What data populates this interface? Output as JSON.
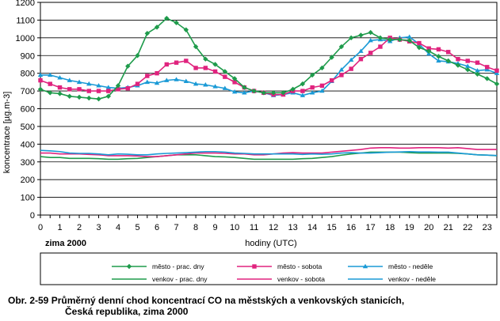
{
  "chart_data": {
    "type": "line",
    "ylabel": "koncentrace [µg.m-3]",
    "xlabel": "hodiny (UTC)",
    "note": "zima 2000",
    "ylim": [
      0,
      1200
    ],
    "yticks": [
      0,
      100,
      200,
      300,
      400,
      500,
      600,
      700,
      800,
      900,
      1000,
      1100,
      1200
    ],
    "xlim": [
      0,
      23.5
    ],
    "xticks": [
      0,
      1,
      2,
      3,
      4,
      5,
      6,
      7,
      8,
      9,
      10,
      11,
      12,
      13,
      14,
      15,
      16,
      17,
      18,
      19,
      20,
      21,
      22,
      23
    ],
    "grid": "horizontal",
    "legend_position": "bottom",
    "x": [
      0,
      0.5,
      1,
      1.5,
      2,
      2.5,
      3,
      3.5,
      4,
      4.5,
      5,
      5.5,
      6,
      6.5,
      7,
      7.5,
      8,
      8.5,
      9,
      9.5,
      10,
      10.5,
      11,
      11.5,
      12,
      12.5,
      13,
      13.5,
      14,
      14.5,
      15,
      15.5,
      16,
      16.5,
      17,
      17.5,
      18,
      18.5,
      19,
      19.5,
      20,
      20.5,
      21,
      21.5,
      22,
      22.5,
      23,
      23.5
    ],
    "series": [
      {
        "name": "město - prac. dny",
        "color": "#1e9b4b",
        "marker": "diamond",
        "values": [
          710,
          690,
          685,
          670,
          665,
          660,
          655,
          670,
          730,
          840,
          900,
          1025,
          1060,
          1110,
          1085,
          1045,
          950,
          880,
          850,
          810,
          770,
          720,
          700,
          690,
          690,
          690,
          710,
          740,
          790,
          830,
          890,
          950,
          1000,
          1015,
          1030,
          1000,
          990,
          990,
          985,
          945,
          925,
          895,
          870,
          845,
          820,
          795,
          770,
          740
        ]
      },
      {
        "name": "venkov - prac. dny",
        "color": "#1e9b4b",
        "marker": "none",
        "values": [
          330,
          325,
          325,
          320,
          320,
          320,
          318,
          315,
          315,
          318,
          320,
          325,
          330,
          335,
          340,
          340,
          340,
          335,
          330,
          328,
          325,
          320,
          315,
          315,
          315,
          315,
          315,
          318,
          320,
          325,
          330,
          338,
          345,
          350,
          355,
          355,
          355,
          355,
          352,
          350,
          350,
          350,
          350,
          348,
          345,
          340,
          338,
          335
        ]
      },
      {
        "name": "město - sobota",
        "color": "#e0237e",
        "marker": "square",
        "values": [
          760,
          740,
          720,
          710,
          710,
          700,
          700,
          700,
          710,
          715,
          740,
          785,
          800,
          850,
          860,
          870,
          830,
          830,
          810,
          780,
          750,
          720,
          700,
          690,
          680,
          680,
          700,
          700,
          720,
          730,
          760,
          790,
          825,
          880,
          915,
          950,
          1000,
          990,
          980,
          970,
          940,
          935,
          920,
          880,
          870,
          860,
          835,
          815
        ]
      },
      {
        "name": "venkov - sobota",
        "color": "#e0237e",
        "marker": "none",
        "values": [
          350,
          350,
          345,
          345,
          345,
          342,
          340,
          335,
          335,
          335,
          333,
          330,
          330,
          335,
          340,
          345,
          350,
          350,
          350,
          348,
          345,
          345,
          340,
          340,
          345,
          350,
          352,
          350,
          350,
          350,
          355,
          360,
          365,
          370,
          378,
          380,
          380,
          378,
          378,
          380,
          380,
          380,
          378,
          380,
          375,
          370,
          370,
          370
        ]
      },
      {
        "name": "město - neděle",
        "color": "#1a9ad6",
        "marker": "triangle",
        "values": [
          790,
          790,
          775,
          760,
          750,
          740,
          730,
          720,
          715,
          720,
          730,
          750,
          745,
          760,
          765,
          755,
          740,
          735,
          725,
          715,
          695,
          690,
          700,
          690,
          675,
          680,
          690,
          675,
          690,
          700,
          755,
          820,
          875,
          925,
          985,
          990,
          980,
          1000,
          1005,
          965,
          910,
          870,
          865,
          855,
          840,
          815,
          820,
          800
        ]
      },
      {
        "name": "venkov - neděle",
        "color": "#1a9ad6",
        "marker": "none",
        "values": [
          365,
          362,
          358,
          350,
          348,
          348,
          345,
          340,
          345,
          343,
          340,
          340,
          345,
          348,
          350,
          352,
          355,
          358,
          358,
          355,
          350,
          348,
          345,
          345,
          345,
          345,
          345,
          342,
          345,
          343,
          345,
          350,
          352,
          350,
          350,
          352,
          355,
          356,
          358,
          356,
          356,
          355,
          355,
          350,
          345,
          340,
          338,
          336
        ]
      }
    ]
  },
  "caption": {
    "line1": "Obr. 2-59  Průměrný denní chod koncentrací CO na městských a venkovských stanicích,",
    "line2": "Česká republika, zima 2000"
  }
}
